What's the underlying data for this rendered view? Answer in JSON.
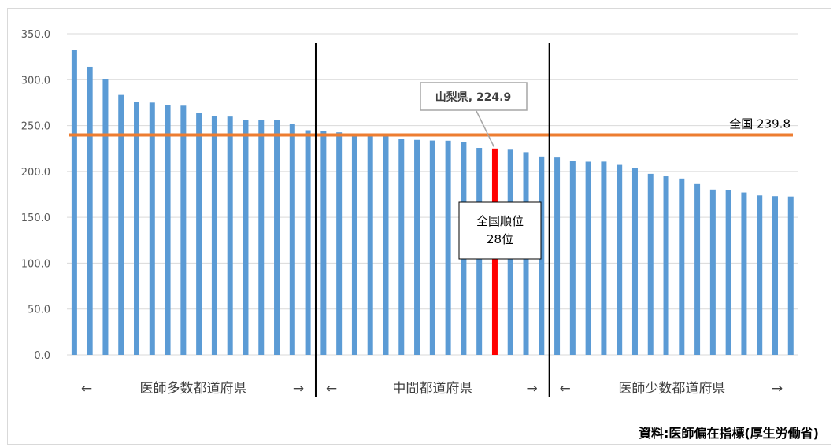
{
  "chart_data": {
    "type": "bar",
    "ylim": [
      0,
      350
    ],
    "ytick_labels": [
      "0.0",
      "50.0",
      "100.0",
      "150.0",
      "200.0",
      "250.0",
      "300.0",
      "350.0"
    ],
    "grid": true,
    "values": [
      332.8,
      314.0,
      300.6,
      283.4,
      275.9,
      275.1,
      272.0,
      271.7,
      263.4,
      260.6,
      259.8,
      256.3,
      256.0,
      255.8,
      252.1,
      244.9,
      244.1,
      242.6,
      239.9,
      239.6,
      239.4,
      235.2,
      234.4,
      233.7,
      233.5,
      231.9,
      225.6,
      224.9,
      224.5,
      221.0,
      216.3,
      215.2,
      211.7,
      210.6,
      210.7,
      207.1,
      203.6,
      197.4,
      194.7,
      192.3,
      186.3,
      180.3,
      179.3,
      177.1,
      173.9,
      173.1,
      172.7
    ],
    "bar_color": "#5b9bd5",
    "highlight": {
      "index": 27,
      "label": "山梨県, 224.9",
      "value": 224.9,
      "color": "#ff0000"
    },
    "reference_line": {
      "value": 239.8,
      "label": "全国 239.8",
      "color": "#ed7d31"
    },
    "dividers_after_index": [
      15,
      30
    ],
    "regions": [
      {
        "label": "医師多数都道府県",
        "left_arrow": "←",
        "right_arrow": "→"
      },
      {
        "label": "中間都道府県",
        "left_arrow": "←",
        "right_arrow": "→"
      },
      {
        "label": "医師少数都道府県",
        "left_arrow": "←",
        "right_arrow": "→"
      }
    ],
    "rank_box": {
      "line1": "全国順位",
      "line2": "28位"
    },
    "source": "資料:医師偏在指標(厚生労働省)"
  }
}
